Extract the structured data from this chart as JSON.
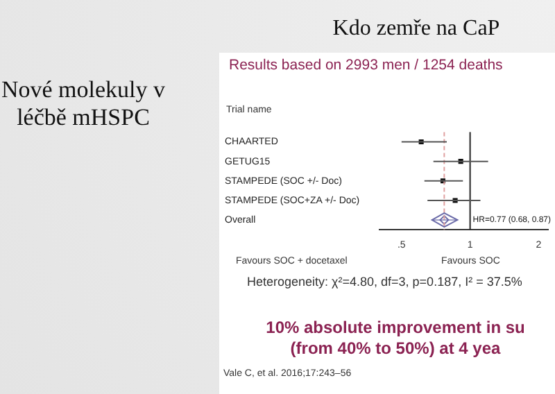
{
  "chart_data": {
    "type": "scatter",
    "title": "Kdo zemře na CaP",
    "subtitle": "Results based on 2993 men / 1254 deaths",
    "ylabel": "Trial name",
    "orientation": "horizontal",
    "log": "x",
    "categories": [
      "CHAARTED",
      "GETUG15",
      "STAMPEDE (SOC +/- Doc)",
      "STAMPEDE (SOC+ZA +/- Doc)",
      "Overall"
    ],
    "series": [
      {
        "color": "#111111",
        "marker": "square",
        "values": [
          0.61,
          0.91,
          0.76,
          0.86,
          null
        ],
        "errors": [
          [
            0.5,
            0.79
          ],
          [
            0.69,
            1.2
          ],
          [
            0.63,
            0.93
          ],
          [
            0.65,
            1.11
          ],
          null
        ]
      },
      {
        "color": "#6a6aa8",
        "marker": "diamond",
        "values": [
          null,
          null,
          null,
          null,
          0.77
        ],
        "errors": [
          null,
          null,
          null,
          null,
          [
            0.68,
            0.88
          ]
        ]
      }
    ],
    "xlim": [
      0.4,
      2.2
    ],
    "xticks": [
      {
        "value": 0.5,
        "label": ".5"
      },
      1,
      2
    ],
    "ref_lines": [
      {
        "axis": "x",
        "value": 1,
        "color": "#222222",
        "line_style": "solid"
      },
      {
        "axis": "x",
        "value": 0.77,
        "color": "#e0a0a0",
        "line_style": "dashed"
      }
    ],
    "annotations": [
      {
        "text": "HR=0.77 (0.68, 0.87)",
        "x": 1,
        "y": "Overall"
      },
      "Favours SOC + docetaxel",
      "Favours SOC",
      "Heterogeneity: χ²=4.80, df=3, p=0.187, I² = 37.5%",
      "10% absolute improvement in su",
      "(from 40% to 50%) at 4 yea",
      "Vale C, et al. 2016;17:243–56",
      "Nové molekuly v léčbě mHSPC"
    ]
  }
}
